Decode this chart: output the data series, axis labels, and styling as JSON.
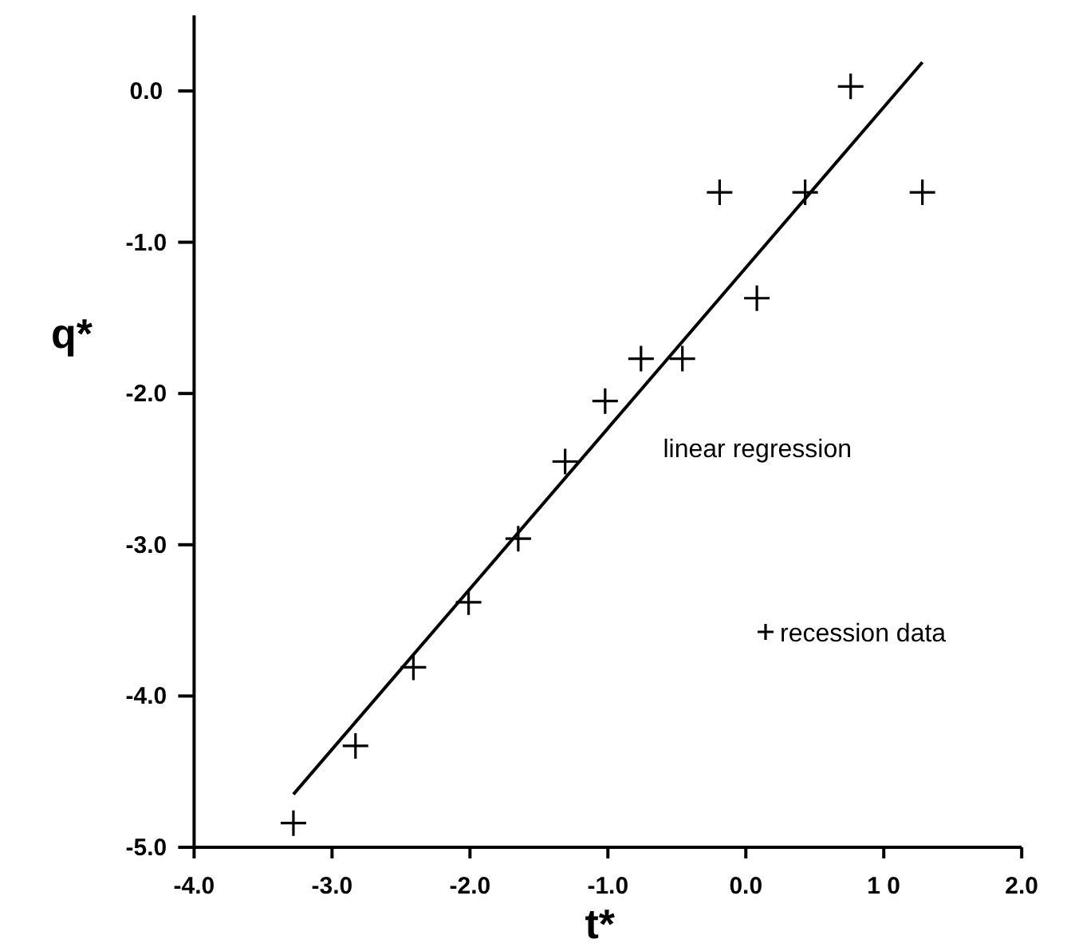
{
  "chart_data": {
    "type": "scatter",
    "xlabel": "t*",
    "ylabel": "q*",
    "xlim": [
      -4,
      2
    ],
    "ylim": [
      -5,
      0.5
    ],
    "xticks": [
      {
        "value": -4,
        "label": "-4.0"
      },
      {
        "value": -3,
        "label": "-3.0"
      },
      {
        "value": -2,
        "label": "-2.0"
      },
      {
        "value": -1,
        "label": "-1.0"
      },
      {
        "value": 0,
        "label": "0.0"
      },
      {
        "value": 1,
        "label": "1 0"
      },
      {
        "value": 2,
        "label": "2.0"
      }
    ],
    "yticks": [
      {
        "value": 0,
        "label": "0.0"
      },
      {
        "value": -1,
        "label": "-1.0"
      },
      {
        "value": -2,
        "label": "-2.0"
      },
      {
        "value": -3,
        "label": "-3.0"
      },
      {
        "value": -4,
        "label": "-4.0"
      },
      {
        "value": -5,
        "label": "-5.0"
      }
    ],
    "grid": false,
    "legend": "bottom right",
    "series": [
      {
        "name": "recession data",
        "marker": "cross",
        "color": "#000000",
        "x": [
          -3.28,
          -2.83,
          -2.41,
          -2.01,
          -1.65,
          -1.31,
          -1.02,
          -0.76,
          -0.46,
          -0.19,
          0.08,
          0.43,
          0.76,
          1.28
        ],
        "values": [
          -4.84,
          -4.33,
          -3.81,
          -3.38,
          -2.96,
          -2.45,
          -2.05,
          -1.77,
          -1.77,
          -0.67,
          -1.37,
          -0.67,
          0.03,
          -0.67
        ]
      },
      {
        "name": "linear regression",
        "type": "line",
        "marker": "none",
        "color": "#000000",
        "line_style": "solid",
        "x": [
          -3.28,
          1.28
        ],
        "values": [
          -4.65,
          0.19
        ]
      }
    ]
  }
}
